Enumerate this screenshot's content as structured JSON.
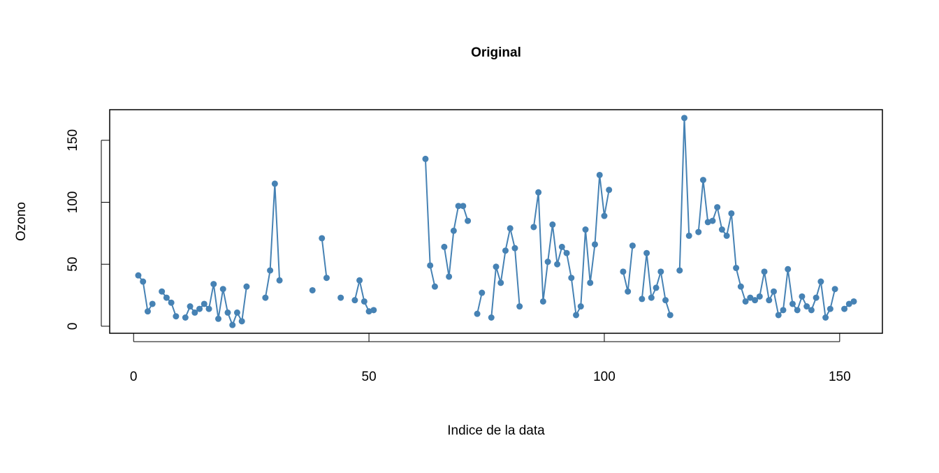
{
  "chart_data": {
    "type": "line",
    "title": "Original",
    "x_label": "Indice de la data",
    "y_label": "Ozono",
    "x": [
      1,
      2,
      3,
      4,
      5,
      6,
      7,
      8,
      9,
      10,
      11,
      12,
      13,
      14,
      15,
      16,
      17,
      18,
      19,
      20,
      21,
      22,
      23,
      24,
      25,
      26,
      27,
      28,
      29,
      30,
      31,
      32,
      33,
      34,
      35,
      36,
      37,
      38,
      39,
      40,
      41,
      42,
      43,
      44,
      45,
      46,
      47,
      48,
      49,
      50,
      51,
      52,
      53,
      54,
      55,
      56,
      57,
      58,
      59,
      60,
      61,
      62,
      63,
      64,
      65,
      66,
      67,
      68,
      69,
      70,
      71,
      72,
      73,
      74,
      75,
      76,
      77,
      78,
      79,
      80,
      81,
      82,
      83,
      84,
      85,
      86,
      87,
      88,
      89,
      90,
      91,
      92,
      93,
      94,
      95,
      96,
      97,
      98,
      99,
      100,
      101,
      102,
      103,
      104,
      105,
      106,
      107,
      108,
      109,
      110,
      111,
      112,
      113,
      114,
      115,
      116,
      117,
      118,
      119,
      120,
      121,
      122,
      123,
      124,
      125,
      126,
      127,
      128,
      129,
      130,
      131,
      132,
      133,
      134,
      135,
      136,
      137,
      138,
      139,
      140,
      141,
      142,
      143,
      144,
      145,
      146,
      147,
      148,
      149,
      150,
      151,
      152,
      153
    ],
    "series": [
      {
        "color": "#4682b4",
        "values": [
          41,
          36,
          12,
          18,
          null,
          28,
          23,
          19,
          8,
          null,
          7,
          16,
          11,
          14,
          18,
          14,
          34,
          6,
          30,
          11,
          1,
          11,
          4,
          32,
          null,
          null,
          null,
          23,
          45,
          115,
          37,
          null,
          null,
          null,
          null,
          null,
          null,
          29,
          null,
          71,
          39,
          null,
          null,
          23,
          null,
          null,
          21,
          37,
          20,
          12,
          13,
          null,
          null,
          null,
          null,
          null,
          null,
          null,
          null,
          null,
          null,
          135,
          49,
          32,
          null,
          64,
          40,
          77,
          97,
          97,
          85,
          null,
          10,
          27,
          null,
          7,
          48,
          35,
          61,
          79,
          63,
          16,
          null,
          null,
          80,
          108,
          20,
          52,
          82,
          50,
          64,
          59,
          39,
          9,
          16,
          78,
          35,
          66,
          122,
          89,
          110,
          null,
          null,
          44,
          28,
          65,
          null,
          22,
          59,
          23,
          31,
          44,
          21,
          9,
          null,
          45,
          168,
          73,
          null,
          76,
          118,
          84,
          85,
          96,
          78,
          73,
          91,
          47,
          32,
          20,
          23,
          21,
          24,
          44,
          21,
          28,
          9,
          13,
          46,
          18,
          13,
          24,
          16,
          13,
          23,
          36,
          7,
          14,
          30,
          null,
          14,
          18,
          20
        ]
      }
    ],
    "xlim": [
      -5.08,
      159.08
    ],
    "ylim": [
      -5.68,
      174.68
    ],
    "xticks": [
      0,
      50,
      100,
      150
    ],
    "yticks": [
      0,
      50,
      100,
      150
    ],
    "grid": false
  }
}
